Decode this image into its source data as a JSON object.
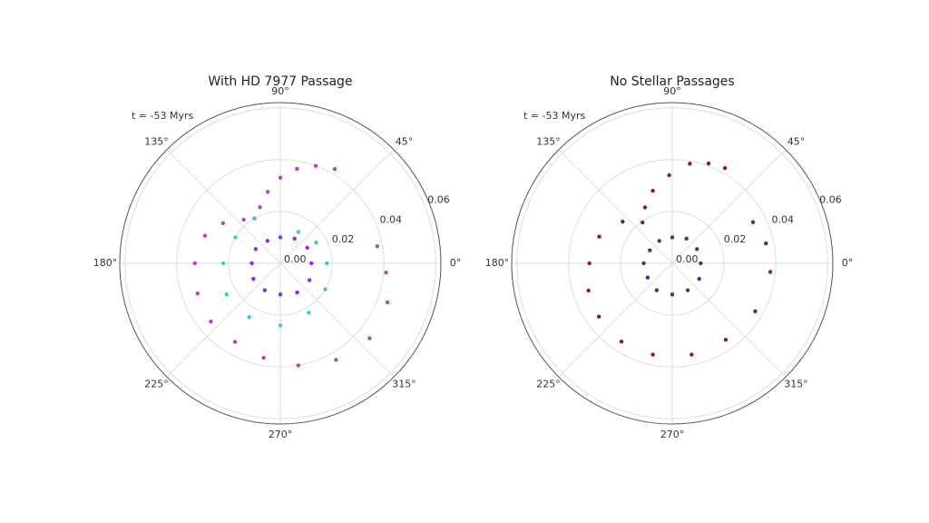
{
  "chart_data": [
    {
      "type": "polar",
      "title": "With HD 7977 Passage",
      "annotation": "t = -53 Myrs",
      "rlim": [
        0,
        0.062
      ],
      "rticks": [
        {
          "value": 0,
          "label": "0.00"
        },
        0.02,
        0.04,
        0.06
      ],
      "thetaticks": [
        {
          "value": 0,
          "label": "0°"
        },
        {
          "value": 45,
          "label": "45°"
        },
        {
          "value": 90,
          "label": "90°"
        },
        {
          "value": 135,
          "label": "135°"
        },
        {
          "value": 180,
          "label": "180°"
        },
        {
          "value": 225,
          "label": "225°"
        },
        {
          "value": 270,
          "label": "270°"
        },
        {
          "value": 315,
          "label": "315°"
        }
      ],
      "series": [
        {
          "color": "#c03cd0",
          "theta": [
            60,
            70,
            80,
            90,
            100,
            110,
            120,
            130,
            145,
            160,
            180,
            200,
            220,
            240,
            260,
            280,
            300,
            320,
            340,
            355,
            10
          ],
          "r": [
            0.042,
            0.04,
            0.037,
            0.033,
            0.028,
            0.023,
            0.02,
            0.022,
            0.027,
            0.031,
            0.033,
            0.034,
            0.035,
            0.035,
            0.037,
            0.04,
            0.043,
            0.045,
            0.044,
            0.041,
            0.038
          ]
        },
        {
          "color": "#3cc8c8",
          "theta": [
            120,
            150,
            180,
            210,
            240,
            270,
            300,
            330,
            0,
            30,
            60
          ],
          "r": [
            0.02,
            0.02,
            0.022,
            0.024,
            0.024,
            0.024,
            0.022,
            0.02,
            0.018,
            0.016,
            0.014
          ]
        },
        {
          "color": "#8a2be2",
          "theta": [
            0,
            30,
            60,
            90,
            120,
            150,
            180,
            210,
            240,
            270,
            300,
            330
          ],
          "r": [
            0.012,
            0.012,
            0.011,
            0.01,
            0.01,
            0.011,
            0.011,
            0.012,
            0.012,
            0.012,
            0.013,
            0.013
          ]
        }
      ]
    },
    {
      "type": "polar",
      "title": "No Stellar Passages",
      "annotation": "t = -53 Myrs",
      "rlim": [
        0,
        0.062
      ],
      "rticks": [
        {
          "value": 0,
          "label": "0.00"
        },
        0.02,
        0.04,
        0.06
      ],
      "thetaticks": [
        {
          "value": 0,
          "label": "0°"
        },
        {
          "value": 45,
          "label": "45°"
        },
        {
          "value": 90,
          "label": "90°"
        },
        {
          "value": 135,
          "label": "135°"
        },
        {
          "value": 180,
          "label": "180°"
        },
        {
          "value": 225,
          "label": "225°"
        },
        {
          "value": 270,
          "label": "270°"
        },
        {
          "value": 315,
          "label": "315°"
        }
      ],
      "series": [
        {
          "color": "#8b1a3a",
          "theta": [
            61,
            70,
            80,
            92,
            105,
            116,
            126,
            140,
            160,
            180,
            198,
            216,
            237,
            258,
            282,
            305,
            330,
            355,
            12,
            27
          ],
          "r": [
            0.042,
            0.041,
            0.039,
            0.034,
            0.029,
            0.024,
            0.0195,
            0.025,
            0.03,
            0.032,
            0.034,
            0.035,
            0.036,
            0.036,
            0.036,
            0.036,
            0.037,
            0.038,
            0.037,
            0.035
          ]
        },
        {
          "color": "#5a2a8a",
          "theta": [
            0,
            30,
            60,
            90,
            120,
            150,
            180,
            210,
            240,
            270,
            300,
            330
          ],
          "r": [
            0.011,
            0.011,
            0.011,
            0.01,
            0.01,
            0.01,
            0.011,
            0.011,
            0.012,
            0.012,
            0.012,
            0.012
          ]
        }
      ]
    }
  ]
}
